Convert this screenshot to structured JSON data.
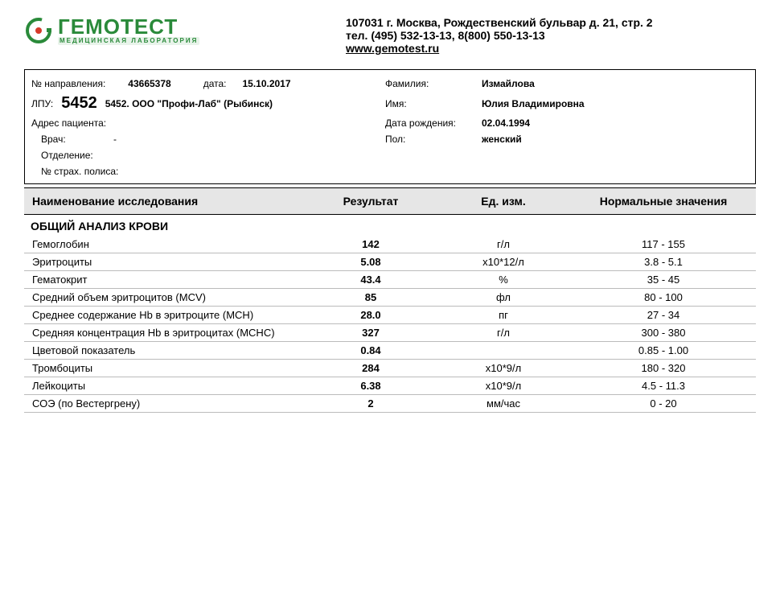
{
  "colors": {
    "brand_green": "#2a8a3a",
    "header_bg": "#e6e6e6",
    "row_border": "#bbbbbb",
    "text": "#000000",
    "page_bg": "#ffffff"
  },
  "header": {
    "logo_name": "ГЕМОТЕСТ",
    "logo_subtitle": "МЕДИЦИНСКАЯ ЛАБОРАТОРИЯ",
    "address": "107031 г. Москва, Рождественский бульвар д. 21, стр. 2",
    "phones": "тел. (495) 532-13-13, 8(800) 550-13-13",
    "website": "www.gemotest.ru"
  },
  "meta": {
    "order_no_label": "№ направления:",
    "order_no": "43665378",
    "date_label": "дата:",
    "date": "15.10.2017",
    "lpu_label": "ЛПУ:",
    "lpu_code": "5452",
    "lpu_name": "5452. ООО \"Профи-Лаб\" (Рыбинск)",
    "patient_addr_label": "Адрес пациента:",
    "patient_addr": "",
    "doctor_label": "Врач:",
    "doctor": "-",
    "department_label": "Отделение:",
    "department": "",
    "policy_label": "№ страх. полиса:",
    "policy": "",
    "surname_label": "Фамилия:",
    "surname": "Измайлова",
    "name_label": "Имя:",
    "name": "Юлия Владимировна",
    "dob_label": "Дата рождения:",
    "dob": "02.04.1994",
    "sex_label": "Пол:",
    "sex": "женский"
  },
  "table": {
    "headers": {
      "name": "Наименование исследования",
      "result": "Результат",
      "unit": "Ед. изм.",
      "ref": "Нормальные значения"
    },
    "section_title": "ОБЩИЙ АНАЛИЗ КРОВИ",
    "rows": [
      {
        "name": "Гемоглобин",
        "result": "142",
        "unit": "г/л",
        "ref": "117 - 155"
      },
      {
        "name": "Эритроциты",
        "result": "5.08",
        "unit": "х10*12/л",
        "ref": "3.8 - 5.1"
      },
      {
        "name": "Гематокрит",
        "result": "43.4",
        "unit": "%",
        "ref": "35 - 45"
      },
      {
        "name": "Средний объем эритроцитов (MCV)",
        "result": "85",
        "unit": "фл",
        "ref": "80 - 100"
      },
      {
        "name": "Среднее содержание Hb в эритроците (MCH)",
        "result": "28.0",
        "unit": "пг",
        "ref": "27 - 34"
      },
      {
        "name": "Средняя концентрация Hb в эритроцитах (MCHC)",
        "result": "327",
        "unit": "г/л",
        "ref": "300 - 380"
      },
      {
        "name": "Цветовой показатель",
        "result": "0.84",
        "unit": "",
        "ref": "0.85 - 1.00"
      },
      {
        "name": "Тромбоциты",
        "result": "284",
        "unit": "х10*9/л",
        "ref": "180 - 320"
      },
      {
        "name": "Лейкоциты",
        "result": "6.38",
        "unit": "х10*9/л",
        "ref": "4.5 - 11.3"
      },
      {
        "name": "СОЭ (по Вестергрену)",
        "result": "2",
        "unit": "мм/час",
        "ref": "0 - 20"
      }
    ]
  }
}
